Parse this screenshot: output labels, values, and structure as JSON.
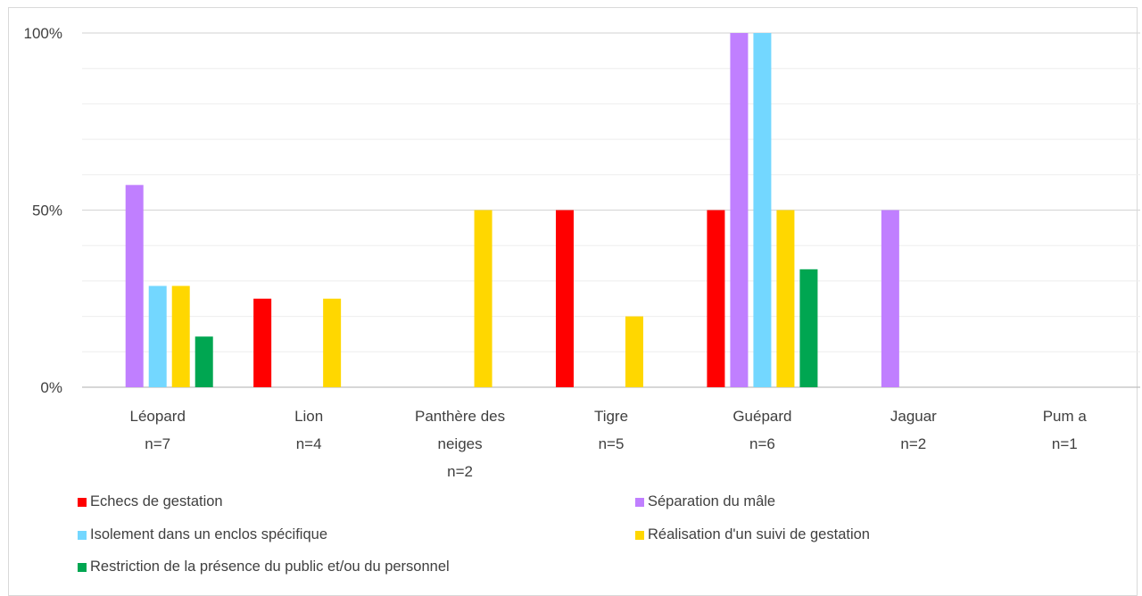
{
  "chart_data": {
    "type": "bar",
    "categories": [
      [
        "Léopard",
        "n=7"
      ],
      [
        "Lion",
        "n=4"
      ],
      [
        "Panthère des",
        "neiges",
        "n=2"
      ],
      [
        "Tigre",
        "n=5"
      ],
      [
        "Guépard",
        "n=6"
      ],
      [
        "Jaguar",
        "n=2"
      ],
      [
        "Pum a",
        "n=1"
      ]
    ],
    "ylim": [
      0,
      100
    ],
    "y_ticks": [
      {
        "value": 0,
        "label": "0%"
      },
      {
        "value": 50,
        "label": "50%"
      },
      {
        "value": 100,
        "label": "100%"
      }
    ],
    "minor_gridlines": [
      10,
      20,
      30,
      40,
      60,
      70,
      80,
      90
    ],
    "grid": true,
    "legend_position": "bottom",
    "series": [
      {
        "name": "Echecs de gestation",
        "color": "#ff0000",
        "values": [
          0,
          25,
          0,
          50,
          50,
          0,
          0
        ]
      },
      {
        "name": "Séparation du mâle",
        "color": "#c07fff",
        "values": [
          57.1,
          0,
          0,
          0,
          100,
          50,
          0
        ]
      },
      {
        "name": "Isolement dans un enclos spécifique",
        "color": "#73d7ff",
        "values": [
          28.6,
          0,
          0,
          0,
          100,
          0,
          0
        ]
      },
      {
        "name": "Réalisation d'un suivi de gestation",
        "color": "#ffd700",
        "values": [
          28.6,
          25,
          50,
          20,
          50,
          0,
          0
        ]
      },
      {
        "name": "Restriction de la présence du public et/ou du personnel",
        "color": "#00a651",
        "values": [
          14.3,
          0,
          0,
          0,
          33.3,
          0,
          0
        ]
      }
    ]
  },
  "legend": {
    "items": [
      {
        "label": "Echecs de gestation",
        "color": "#ff0000"
      },
      {
        "label": "Séparation du mâle",
        "color": "#c07fff"
      },
      {
        "label": "Isolement dans un enclos spécifique",
        "color": "#73d7ff"
      },
      {
        "label": "Réalisation d'un suivi de gestation",
        "color": "#ffd700"
      },
      {
        "label": "Restriction de la présence du public et/ou du personnel",
        "color": "#00a651"
      }
    ]
  }
}
